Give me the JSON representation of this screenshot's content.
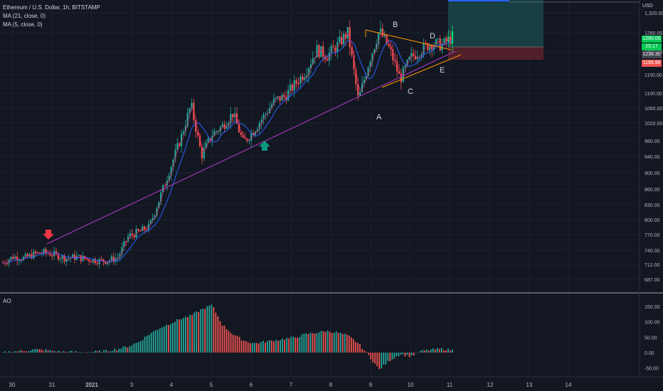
{
  "header": {
    "symbol": "Ethereum / U.S. Dollar, 1h, BITSTAMP",
    "ma21": "MA (21, close, 0)",
    "ma5": "MA (5, close, 0)",
    "currency": "USD"
  },
  "price_axis": {
    "ticks": [
      "1,320.00",
      "1280.00",
      "1200.00",
      "1150.00",
      "1100.00",
      "1060.00",
      "1020.00",
      "980.00",
      "940.00",
      "900.00",
      "860.00",
      "830.00",
      "800.00",
      "770.00",
      "740.00",
      "712.00",
      "687.00"
    ],
    "tags": {
      "last": "1260.00",
      "countdown": "25:17",
      "ma_value": "1236.30",
      "stop": "1195.98"
    }
  },
  "time_axis": {
    "labels": [
      "30",
      "31",
      "2021",
      "3",
      "4",
      "5",
      "6",
      "7",
      "8",
      "9",
      "10",
      "11",
      "12",
      "13",
      "14"
    ]
  },
  "annotations": {
    "A": "A",
    "B": "B",
    "C": "C",
    "D": "D",
    "E": "E"
  },
  "oscillator": {
    "name": "AO",
    "ticks": [
      "150.00",
      "100.00",
      "50.00",
      "0.00",
      "-50.00"
    ]
  },
  "colors": {
    "background": "#131722",
    "up": "#26a69a",
    "up_bright": "#00e676",
    "down": "#ef5350",
    "ma21": "#2962ff",
    "ma5": "#e91e63",
    "trendline": "#b33bc7",
    "triangle": "#ff9800",
    "arrow_red": "#f23645",
    "arrow_teal": "#089981"
  },
  "chart_data": {
    "type": "candlestick",
    "title": "Ethereum / U.S. Dollar, 1h, BITSTAMP",
    "ylim": [
      680,
      1330
    ],
    "x_range": [
      "Dec 29",
      "Jan 14"
    ],
    "key_points": [
      {
        "label": "A",
        "x": "Jan 8",
        "price": 1070
      },
      {
        "label": "B",
        "x": "Jan 8",
        "price": 1285
      },
      {
        "label": "C",
        "x": "Jan 9",
        "price": 1140
      },
      {
        "label": "D",
        "x": "Jan 9",
        "price": 1260
      },
      {
        "label": "E",
        "x": "Jan 10",
        "price": 1215
      }
    ],
    "price_path": [
      {
        "t": 0,
        "p": 728
      },
      {
        "t": 1,
        "p": 742
      },
      {
        "t": 2,
        "p": 738
      },
      {
        "t": 3,
        "p": 748
      },
      {
        "t": 4,
        "p": 752
      },
      {
        "t": 5,
        "p": 746
      },
      {
        "t": 6,
        "p": 738
      },
      {
        "t": 7,
        "p": 741
      },
      {
        "t": 8,
        "p": 736
      },
      {
        "t": 9,
        "p": 733
      },
      {
        "t": 10,
        "p": 732
      },
      {
        "t": 11,
        "p": 740
      },
      {
        "t": 12,
        "p": 790
      },
      {
        "t": 13,
        "p": 800
      },
      {
        "t": 14,
        "p": 812
      },
      {
        "t": 15,
        "p": 880
      },
      {
        "t": 16,
        "p": 950
      },
      {
        "t": 17,
        "p": 1020
      },
      {
        "t": 18,
        "p": 1100
      },
      {
        "t": 19,
        "p": 980
      },
      {
        "t": 20,
        "p": 1030
      },
      {
        "t": 21,
        "p": 1050
      },
      {
        "t": 22,
        "p": 1080
      },
      {
        "t": 23,
        "p": 1010
      },
      {
        "t": 24,
        "p": 1040
      },
      {
        "t": 25,
        "p": 1075
      },
      {
        "t": 26,
        "p": 1110
      },
      {
        "t": 27,
        "p": 1120
      },
      {
        "t": 28,
        "p": 1150
      },
      {
        "t": 29,
        "p": 1180
      },
      {
        "t": 30,
        "p": 1230
      },
      {
        "t": 31,
        "p": 1215
      },
      {
        "t": 32,
        "p": 1240
      },
      {
        "t": 33,
        "p": 1270
      },
      {
        "t": 34,
        "p": 1110
      },
      {
        "t": 35,
        "p": 1200
      },
      {
        "t": 36,
        "p": 1275
      },
      {
        "t": 37,
        "p": 1230
      },
      {
        "t": 38,
        "p": 1160
      },
      {
        "t": 39,
        "p": 1210
      },
      {
        "t": 40,
        "p": 1230
      },
      {
        "t": 41,
        "p": 1245
      },
      {
        "t": 42,
        "p": 1240
      },
      {
        "t": 43,
        "p": 1260
      }
    ],
    "ao_values": [
      0,
      4,
      6,
      10,
      8,
      5,
      3,
      2,
      1,
      3,
      6,
      12,
      20,
      35,
      60,
      80,
      95,
      110,
      120,
      140,
      155,
      90,
      60,
      40,
      30,
      35,
      40,
      45,
      50,
      60,
      65,
      70,
      65,
      55,
      30,
      -10,
      -55,
      -25,
      -5,
      -12,
      5,
      10,
      12,
      8
    ]
  }
}
